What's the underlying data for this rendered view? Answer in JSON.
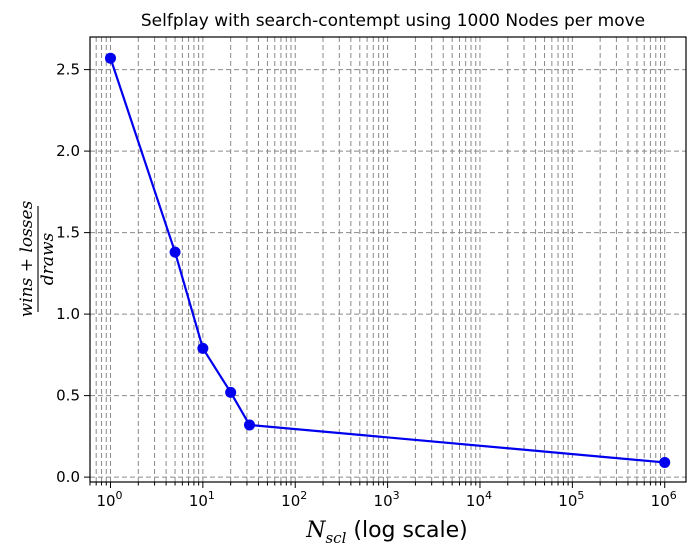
{
  "chart_data": {
    "type": "line",
    "title": "Selfplay with search-contempt using 1000 Nodes per move",
    "xlabel": {
      "main": "N",
      "subscript": "scl",
      "suffix": " (log scale)"
    },
    "ylabel": {
      "numerator": "wins + losses",
      "denominator": "draws"
    },
    "xscale": "log",
    "xlim": [
      0.6,
      1700000
    ],
    "ylim": [
      -0.03,
      2.7
    ],
    "x_ticks": [
      {
        "base": "10",
        "exp": "0",
        "value": 1
      },
      {
        "base": "10",
        "exp": "1",
        "value": 10
      },
      {
        "base": "10",
        "exp": "2",
        "value": 100
      },
      {
        "base": "10",
        "exp": "3",
        "value": 1000
      },
      {
        "base": "10",
        "exp": "4",
        "value": 10000
      },
      {
        "base": "10",
        "exp": "5",
        "value": 100000
      },
      {
        "base": "10",
        "exp": "6",
        "value": 1000000
      }
    ],
    "y_ticks": [
      {
        "label": "0.0",
        "value": 0.0
      },
      {
        "label": "0.5",
        "value": 0.5
      },
      {
        "label": "1.0",
        "value": 1.0
      },
      {
        "label": "1.5",
        "value": 1.5
      },
      {
        "label": "2.0",
        "value": 2.0
      },
      {
        "label": "2.5",
        "value": 2.5
      }
    ],
    "grid": "major and minor, dashed",
    "series": [
      {
        "color": "#0000ee",
        "marker": "circle",
        "points": [
          {
            "x": 1,
            "y": 2.57
          },
          {
            "x": 5,
            "y": 1.38
          },
          {
            "x": 10,
            "y": 0.79
          },
          {
            "x": 20,
            "y": 0.52
          },
          {
            "x": 32,
            "y": 0.32
          },
          {
            "x": 1000000,
            "y": 0.09
          }
        ]
      }
    ]
  }
}
